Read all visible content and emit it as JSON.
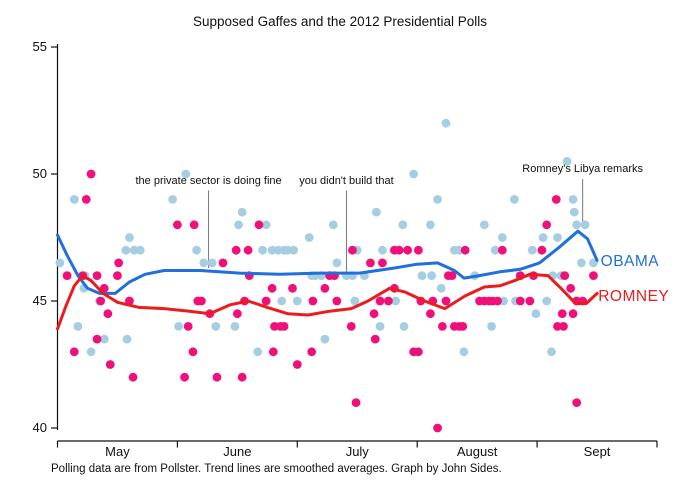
{
  "chart_data": {
    "type": "scatter",
    "title": "Supposed Gaffes and the 2012 Presidential Polls",
    "caption": "Polling data are from Pollster.  Trend lines are smoothed averages.  Graph by John Sides.",
    "x_axis": {
      "labels": [
        "May",
        "June",
        "July",
        "August",
        "Sept"
      ],
      "range_months": [
        0,
        5
      ],
      "grid": false
    },
    "y_axis": {
      "ticks": [
        40,
        45,
        50,
        55
      ],
      "range": [
        40,
        55
      ],
      "grid": false
    },
    "colors": {
      "obama_points": "#a6cee3",
      "obama_line": "#1f6fdc",
      "romney_points": "#f1107a",
      "romney_line": "#ea1c1c",
      "annotation_line": "#777777",
      "axis": "#111111"
    },
    "series": [
      {
        "name": "OBAMA",
        "point_color": "#a6cee3",
        "line_color": "#1f6fdc",
        "label_pos": [
          4.53,
          46.55
        ],
        "points": [
          [
            0.02,
            46.5
          ],
          [
            0.14,
            49
          ],
          [
            0.17,
            44
          ],
          [
            0.22,
            45.5
          ],
          [
            0.23,
            46
          ],
          [
            0.28,
            43
          ],
          [
            0.35,
            45
          ],
          [
            0.39,
            43.5
          ],
          [
            0.57,
            47
          ],
          [
            0.6,
            47.5
          ],
          [
            0.64,
            47
          ],
          [
            0.69,
            47
          ],
          [
            0.58,
            43.5
          ],
          [
            0.96,
            49
          ],
          [
            1.01,
            44
          ],
          [
            1.07,
            50
          ],
          [
            1.16,
            47
          ],
          [
            1.22,
            46.5
          ],
          [
            1.29,
            46.5
          ],
          [
            1.32,
            44
          ],
          [
            1.38,
            46.5
          ],
          [
            1.48,
            44
          ],
          [
            1.51,
            48
          ],
          [
            1.54,
            48.5
          ],
          [
            1.67,
            43
          ],
          [
            1.71,
            47
          ],
          [
            1.74,
            48
          ],
          [
            1.79,
            47
          ],
          [
            1.84,
            47
          ],
          [
            1.87,
            45
          ],
          [
            1.89,
            47
          ],
          [
            1.92,
            47
          ],
          [
            1.97,
            47
          ],
          [
            2.0,
            45
          ],
          [
            2.1,
            47.5
          ],
          [
            2.12,
            46
          ],
          [
            2.15,
            46
          ],
          [
            2.2,
            46
          ],
          [
            2.23,
            43.5
          ],
          [
            2.3,
            48
          ],
          [
            2.33,
            46.5
          ],
          [
            2.41,
            46
          ],
          [
            2.46,
            46
          ],
          [
            2.48,
            45
          ],
          [
            2.5,
            47
          ],
          [
            2.56,
            46
          ],
          [
            2.66,
            48.5
          ],
          [
            2.69,
            44
          ],
          [
            2.71,
            47
          ],
          [
            2.82,
            45
          ],
          [
            2.88,
            48
          ],
          [
            2.89,
            44
          ],
          [
            2.97,
            50
          ],
          [
            3.04,
            46
          ],
          [
            3.11,
            48
          ],
          [
            3.12,
            46
          ],
          [
            3.17,
            49
          ],
          [
            3.2,
            45.5
          ],
          [
            3.24,
            52
          ],
          [
            3.31,
            47
          ],
          [
            3.35,
            47
          ],
          [
            3.39,
            43
          ],
          [
            3.48,
            46
          ],
          [
            3.56,
            48
          ],
          [
            3.62,
            44
          ],
          [
            3.65,
            47
          ],
          [
            3.71,
            47.5
          ],
          [
            3.72,
            45
          ],
          [
            3.81,
            49
          ],
          [
            3.82,
            45
          ],
          [
            3.96,
            47
          ],
          [
            3.99,
            44.5
          ],
          [
            4.05,
            47.5
          ],
          [
            4.08,
            45
          ],
          [
            4.12,
            43
          ],
          [
            4.13,
            46
          ],
          [
            4.17,
            47.5
          ],
          [
            4.2,
            46
          ],
          [
            4.25,
            50.5
          ],
          [
            4.3,
            49
          ],
          [
            4.31,
            48.5
          ],
          [
            4.33,
            48
          ],
          [
            4.37,
            46.5
          ],
          [
            4.4,
            48
          ],
          [
            4.47,
            46.5
          ]
        ],
        "trend": [
          [
            0,
            47.6
          ],
          [
            0.08,
            46.8
          ],
          [
            0.17,
            46.0
          ],
          [
            0.25,
            45.5
          ],
          [
            0.35,
            45.3
          ],
          [
            0.48,
            45.3
          ],
          [
            0.6,
            45.75
          ],
          [
            0.73,
            46.05
          ],
          [
            0.89,
            46.2
          ],
          [
            1.19,
            46.2
          ],
          [
            1.52,
            46.1
          ],
          [
            1.85,
            46.05
          ],
          [
            2.19,
            46.1
          ],
          [
            2.52,
            46.1
          ],
          [
            2.81,
            46.3
          ],
          [
            3.0,
            46.45
          ],
          [
            3.17,
            46.5
          ],
          [
            3.31,
            46.2
          ],
          [
            3.39,
            45.9
          ],
          [
            3.52,
            46.0
          ],
          [
            3.69,
            46.15
          ],
          [
            3.86,
            46.25
          ],
          [
            4.02,
            46.5
          ],
          [
            4.18,
            47.1
          ],
          [
            4.34,
            47.75
          ],
          [
            4.42,
            47.45
          ],
          [
            4.5,
            46.6
          ]
        ]
      },
      {
        "name": "ROMNEY",
        "point_color": "#f1107a",
        "line_color": "#ea1c1c",
        "label_pos": [
          4.51,
          45.15
        ],
        "points": [
          [
            0.08,
            46
          ],
          [
            0.14,
            43
          ],
          [
            0.21,
            46
          ],
          [
            0.24,
            49
          ],
          [
            0.28,
            50
          ],
          [
            0.33,
            46
          ],
          [
            0.33,
            43.5
          ],
          [
            0.36,
            45
          ],
          [
            0.39,
            45.5
          ],
          [
            0.42,
            44.5
          ],
          [
            0.44,
            42.5
          ],
          [
            0.5,
            46
          ],
          [
            0.51,
            46.5
          ],
          [
            0.6,
            45
          ],
          [
            0.63,
            42
          ],
          [
            1.0,
            48
          ],
          [
            1.06,
            42
          ],
          [
            1.09,
            44
          ],
          [
            1.13,
            43
          ],
          [
            1.14,
            48
          ],
          [
            1.17,
            45
          ],
          [
            1.2,
            45
          ],
          [
            1.27,
            44.5
          ],
          [
            1.33,
            42
          ],
          [
            1.38,
            46.5
          ],
          [
            1.49,
            47
          ],
          [
            1.5,
            44.5
          ],
          [
            1.54,
            42
          ],
          [
            1.56,
            45
          ],
          [
            1.59,
            47
          ],
          [
            1.6,
            46
          ],
          [
            1.68,
            48
          ],
          [
            1.74,
            45
          ],
          [
            1.79,
            45.5
          ],
          [
            1.8,
            43
          ],
          [
            1.81,
            44
          ],
          [
            1.86,
            44
          ],
          [
            1.89,
            44
          ],
          [
            1.96,
            45.5
          ],
          [
            2.0,
            42.5
          ],
          [
            2.12,
            43
          ],
          [
            2.13,
            45
          ],
          [
            2.23,
            45.5
          ],
          [
            2.27,
            46
          ],
          [
            2.31,
            46
          ],
          [
            2.33,
            45
          ],
          [
            2.45,
            44
          ],
          [
            2.46,
            47
          ],
          [
            2.49,
            41
          ],
          [
            2.61,
            46.5
          ],
          [
            2.64,
            44.5
          ],
          [
            2.65,
            43.5
          ],
          [
            2.69,
            45
          ],
          [
            2.71,
            46.5
          ],
          [
            2.76,
            45
          ],
          [
            2.81,
            47
          ],
          [
            2.81,
            45.5
          ],
          [
            2.85,
            47
          ],
          [
            2.92,
            47
          ],
          [
            2.97,
            43
          ],
          [
            3.01,
            47
          ],
          [
            3.01,
            43
          ],
          [
            3.03,
            45
          ],
          [
            3.11,
            44.5
          ],
          [
            3.13,
            45
          ],
          [
            3.17,
            40
          ],
          [
            3.21,
            44
          ],
          [
            3.24,
            45
          ],
          [
            3.26,
            46
          ],
          [
            3.29,
            46
          ],
          [
            3.31,
            44
          ],
          [
            3.35,
            44
          ],
          [
            3.38,
            44
          ],
          [
            3.4,
            47
          ],
          [
            3.52,
            45
          ],
          [
            3.56,
            45
          ],
          [
            3.6,
            45
          ],
          [
            3.63,
            45
          ],
          [
            3.67,
            45
          ],
          [
            3.71,
            47
          ],
          [
            3.86,
            46
          ],
          [
            3.86,
            45
          ],
          [
            3.94,
            45
          ],
          [
            3.97,
            46
          ],
          [
            4.04,
            47
          ],
          [
            4.08,
            48
          ],
          [
            4.16,
            49
          ],
          [
            4.17,
            44
          ],
          [
            4.21,
            44.5
          ],
          [
            4.22,
            44
          ],
          [
            4.23,
            46
          ],
          [
            4.28,
            45.5
          ],
          [
            4.3,
            44.5
          ],
          [
            4.33,
            45
          ],
          [
            4.33,
            41
          ],
          [
            4.38,
            45
          ],
          [
            4.47,
            46
          ]
        ],
        "trend": [
          [
            0,
            43.9
          ],
          [
            0.07,
            44.8
          ],
          [
            0.14,
            45.6
          ],
          [
            0.21,
            46.0
          ],
          [
            0.28,
            45.8
          ],
          [
            0.38,
            45.3
          ],
          [
            0.5,
            44.95
          ],
          [
            0.68,
            44.75
          ],
          [
            0.89,
            44.7
          ],
          [
            1.1,
            44.6
          ],
          [
            1.27,
            44.5
          ],
          [
            1.44,
            44.85
          ],
          [
            1.59,
            45.0
          ],
          [
            1.75,
            44.75
          ],
          [
            1.92,
            44.5
          ],
          [
            2.09,
            44.45
          ],
          [
            2.27,
            44.6
          ],
          [
            2.45,
            44.7
          ],
          [
            2.59,
            45.0
          ],
          [
            2.77,
            45.5
          ],
          [
            2.9,
            45.35
          ],
          [
            3.06,
            45.0
          ],
          [
            3.23,
            44.7
          ],
          [
            3.4,
            45.2
          ],
          [
            3.56,
            45.55
          ],
          [
            3.69,
            45.6
          ],
          [
            3.81,
            45.8
          ],
          [
            3.94,
            46.05
          ],
          [
            4.09,
            46.0
          ],
          [
            4.21,
            45.45
          ],
          [
            4.32,
            44.9
          ],
          [
            4.41,
            44.9
          ],
          [
            4.5,
            45.3
          ]
        ]
      }
    ],
    "annotations": [
      {
        "text": "the private sector is doing fine",
        "x": 1.26,
        "line_top": 49.35,
        "line_bottom": 46.3,
        "text_y": 49.7
      },
      {
        "text": "you didn't build that",
        "x": 2.41,
        "line_top": 49.35,
        "line_bottom": 46.15,
        "text_y": 49.7
      },
      {
        "text": "Romney's Libya remarks",
        "x": 4.38,
        "line_top": 49.8,
        "line_bottom": 48.1,
        "text_y": 50.15
      }
    ]
  }
}
